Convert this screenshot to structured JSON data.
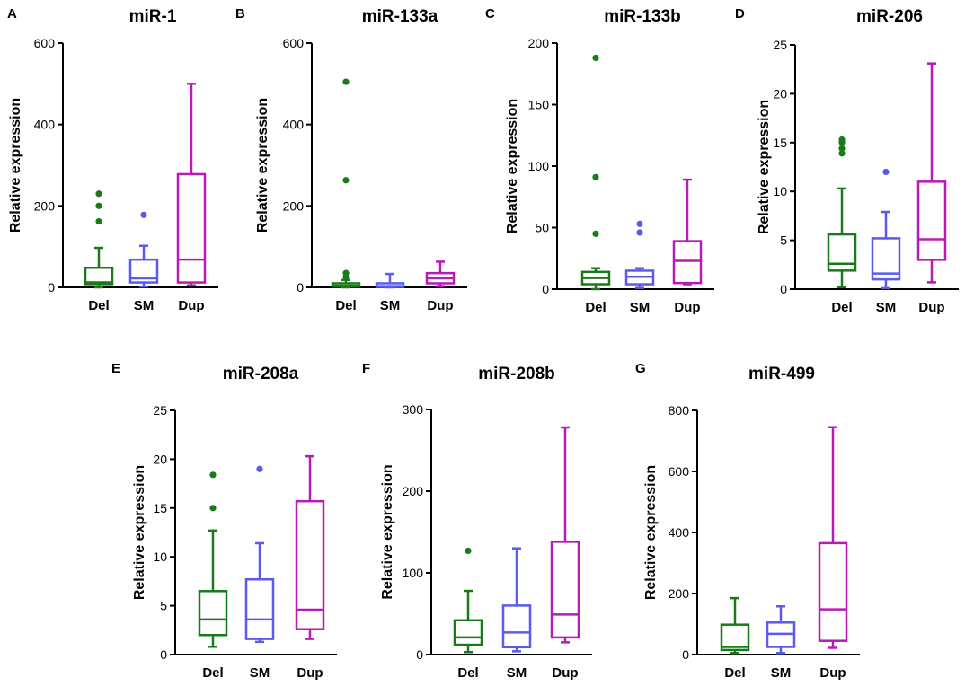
{
  "figure": {
    "colors": {
      "Del": "#1a7a1a",
      "SM": "#5a5af0",
      "Dup": "#b81ab8"
    },
    "categories": [
      "Del",
      "SM",
      "Dup"
    ]
  },
  "chart_data": [
    {
      "panel": "A",
      "type": "box",
      "title": "miR-1",
      "ylabel": "Relative expression",
      "xlabel": "",
      "ylim": [
        0,
        600
      ],
      "yticks": [
        0,
        200,
        400,
        600
      ],
      "categories": [
        "Del",
        "SM",
        "Dup"
      ],
      "boxes": [
        {
          "name": "Del",
          "whisker_low": 0,
          "q1": 8,
          "median": 12,
          "q3": 48,
          "whisker_high": 97,
          "outliers": [
            162,
            200,
            230
          ]
        },
        {
          "name": "SM",
          "whisker_low": 2,
          "q1": 12,
          "median": 22,
          "q3": 68,
          "whisker_high": 102,
          "outliers": [
            178
          ]
        },
        {
          "name": "Dup",
          "whisker_low": 5,
          "q1": 12,
          "median": 68,
          "q3": 278,
          "whisker_high": 500,
          "outliers": []
        }
      ]
    },
    {
      "panel": "B",
      "type": "box",
      "title": "miR-133a",
      "ylabel": "Relative expression",
      "xlabel": "",
      "ylim": [
        0,
        600
      ],
      "yticks": [
        0,
        200,
        400,
        600
      ],
      "categories": [
        "Del",
        "SM",
        "Dup"
      ],
      "boxes": [
        {
          "name": "Del",
          "whisker_low": 0,
          "q1": 2,
          "median": 4,
          "q3": 10,
          "whisker_high": 18,
          "outliers": [
            25,
            35,
            263,
            505
          ]
        },
        {
          "name": "SM",
          "whisker_low": 0,
          "q1": 1,
          "median": 3,
          "q3": 10,
          "whisker_high": 33,
          "outliers": []
        },
        {
          "name": "Dup",
          "whisker_low": 3,
          "q1": 10,
          "median": 22,
          "q3": 35,
          "whisker_high": 63,
          "outliers": []
        }
      ]
    },
    {
      "panel": "C",
      "type": "box",
      "title": "miR-133b",
      "ylabel": "Relative expression",
      "xlabel": "",
      "ylim": [
        0,
        200
      ],
      "yticks": [
        0,
        50,
        100,
        150,
        200
      ],
      "categories": [
        "Del",
        "SM",
        "Dup"
      ],
      "boxes": [
        {
          "name": "Del",
          "whisker_low": 0,
          "q1": 4,
          "median": 9,
          "q3": 14,
          "whisker_high": 17,
          "outliers": [
            45,
            91,
            188
          ]
        },
        {
          "name": "SM",
          "whisker_low": 1,
          "q1": 4,
          "median": 10,
          "q3": 15,
          "whisker_high": 17,
          "outliers": [
            46,
            53
          ]
        },
        {
          "name": "Dup",
          "whisker_low": 4,
          "q1": 5,
          "median": 23,
          "q3": 39,
          "whisker_high": 89,
          "outliers": []
        }
      ]
    },
    {
      "panel": "D",
      "type": "box",
      "title": "miR-206",
      "ylabel": "Relative expression",
      "xlabel": "",
      "ylim": [
        0,
        25
      ],
      "yticks": [
        0,
        5,
        10,
        15,
        20,
        25
      ],
      "categories": [
        "Del",
        "SM",
        "Dup"
      ],
      "boxes": [
        {
          "name": "Del",
          "whisker_low": 0.2,
          "q1": 1.9,
          "median": 2.6,
          "q3": 5.6,
          "whisker_high": 10.3,
          "outliers": [
            13.9,
            14.4,
            15.0,
            15.3
          ]
        },
        {
          "name": "SM",
          "whisker_low": 0.1,
          "q1": 1.0,
          "median": 1.6,
          "q3": 5.2,
          "whisker_high": 7.9,
          "outliers": [
            12.0
          ]
        },
        {
          "name": "Dup",
          "whisker_low": 0.7,
          "q1": 3.0,
          "median": 5.1,
          "q3": 11.0,
          "whisker_high": 23.1,
          "outliers": []
        }
      ]
    },
    {
      "panel": "E",
      "type": "box",
      "title": "miR-208a",
      "ylabel": "Relative expression",
      "xlabel": "",
      "ylim": [
        0,
        25
      ],
      "yticks": [
        0,
        5,
        10,
        15,
        20,
        25
      ],
      "categories": [
        "Del",
        "SM",
        "Dup"
      ],
      "boxes": [
        {
          "name": "Del",
          "whisker_low": 0.8,
          "q1": 2.0,
          "median": 3.6,
          "q3": 6.5,
          "whisker_high": 12.7,
          "outliers": [
            15.0,
            18.4
          ]
        },
        {
          "name": "SM",
          "whisker_low": 1.3,
          "q1": 1.6,
          "median": 3.6,
          "q3": 7.7,
          "whisker_high": 11.4,
          "outliers": [
            19.0
          ]
        },
        {
          "name": "Dup",
          "whisker_low": 1.6,
          "q1": 2.6,
          "median": 4.6,
          "q3": 15.7,
          "whisker_high": 20.3,
          "outliers": []
        }
      ]
    },
    {
      "panel": "F",
      "type": "box",
      "title": "miR-208b",
      "ylabel": "Relative expression",
      "xlabel": "",
      "ylim": [
        0,
        300
      ],
      "yticks": [
        0,
        100,
        200,
        300
      ],
      "categories": [
        "Del",
        "SM",
        "Dup"
      ],
      "boxes": [
        {
          "name": "Del",
          "whisker_low": 3,
          "q1": 12,
          "median": 21,
          "q3": 42,
          "whisker_high": 78,
          "outliers": [
            127
          ]
        },
        {
          "name": "SM",
          "whisker_low": 4,
          "q1": 9,
          "median": 27,
          "q3": 60,
          "whisker_high": 130,
          "outliers": []
        },
        {
          "name": "Dup",
          "whisker_low": 15,
          "q1": 21,
          "median": 49,
          "q3": 138,
          "whisker_high": 278,
          "outliers": []
        }
      ]
    },
    {
      "panel": "G",
      "type": "box",
      "title": "miR-499",
      "ylabel": "Relative expression",
      "xlabel": "",
      "ylim": [
        0,
        800
      ],
      "yticks": [
        0,
        200,
        400,
        600,
        800
      ],
      "categories": [
        "Del",
        "SM",
        "Dup"
      ],
      "boxes": [
        {
          "name": "Del",
          "whisker_low": 5,
          "q1": 15,
          "median": 25,
          "q3": 98,
          "whisker_high": 185,
          "outliers": []
        },
        {
          "name": "SM",
          "whisker_low": 5,
          "q1": 25,
          "median": 68,
          "q3": 105,
          "whisker_high": 158,
          "outliers": []
        },
        {
          "name": "Dup",
          "whisker_low": 22,
          "q1": 45,
          "median": 148,
          "q3": 365,
          "whisker_high": 745,
          "outliers": []
        }
      ]
    }
  ]
}
